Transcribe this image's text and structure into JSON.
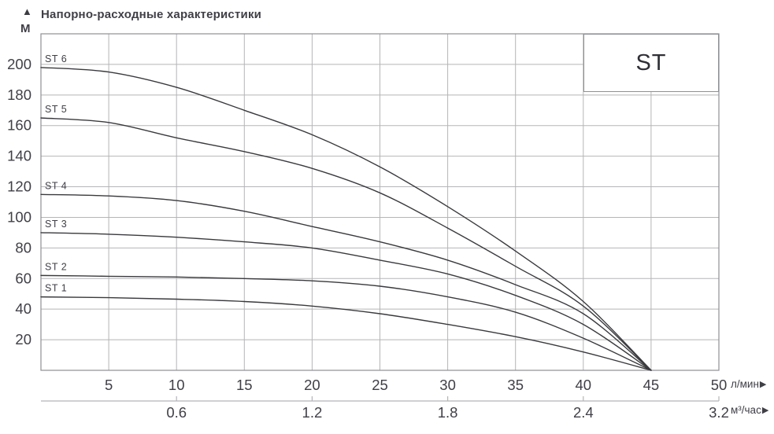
{
  "header": {
    "title": "Напорно-расходные характеристики",
    "y_axis_unit": "М"
  },
  "icons": {
    "up_arrow": "▲",
    "right_arrow": "▶"
  },
  "legend": {
    "label": "ST"
  },
  "axes": {
    "y_ticks": [
      20,
      40,
      60,
      80,
      100,
      120,
      140,
      160,
      180,
      200
    ],
    "x_primary": {
      "ticks": [
        5,
        10,
        15,
        20,
        25,
        30,
        35,
        40,
        45,
        50
      ],
      "unit": "л/мин"
    },
    "x_secondary": {
      "ticks": [
        {
          "label": "0.6",
          "q": 10
        },
        {
          "label": "1.2",
          "q": 20
        },
        {
          "label": "1.8",
          "q": 30
        },
        {
          "label": "2.4",
          "q": 40
        },
        {
          "label": "3.2",
          "q": 50
        }
      ],
      "unit": "м³/час"
    }
  },
  "chart_data": {
    "type": "line",
    "title": "Напорно-расходные характеристики",
    "xlabel": "л/мин",
    "x2label": "м³/час",
    "ylabel": "М",
    "xlim": [
      0,
      50
    ],
    "ylim": [
      0,
      220
    ],
    "grid": true,
    "legend_position": "top-right",
    "x": [
      0,
      5,
      10,
      15,
      20,
      25,
      30,
      35,
      40,
      45
    ],
    "series": [
      {
        "name": "ST 6",
        "values": [
          198,
          195,
          185,
          170,
          154,
          133,
          107,
          78,
          45,
          0
        ]
      },
      {
        "name": "ST 5",
        "values": [
          165,
          162,
          152,
          143,
          132,
          116,
          93,
          68,
          42,
          0
        ]
      },
      {
        "name": "ST 4",
        "values": [
          115,
          114,
          111,
          104,
          94,
          84,
          72,
          56,
          37,
          0
        ]
      },
      {
        "name": "ST 3",
        "values": [
          90,
          89,
          87,
          84,
          80,
          72,
          63,
          49,
          30,
          0
        ]
      },
      {
        "name": "ST 2",
        "values": [
          62,
          61.5,
          61,
          60,
          58.5,
          55,
          48,
          38,
          21,
          0
        ]
      },
      {
        "name": "ST 1",
        "values": [
          48,
          47.5,
          46.5,
          45,
          42,
          37,
          30,
          22,
          12,
          0
        ]
      }
    ]
  },
  "colors": {
    "text": "#3f3f46",
    "curve": "#3a3a3e",
    "grid": "#b5b5b8",
    "border": "#8f9094",
    "background": "#ffffff"
  }
}
